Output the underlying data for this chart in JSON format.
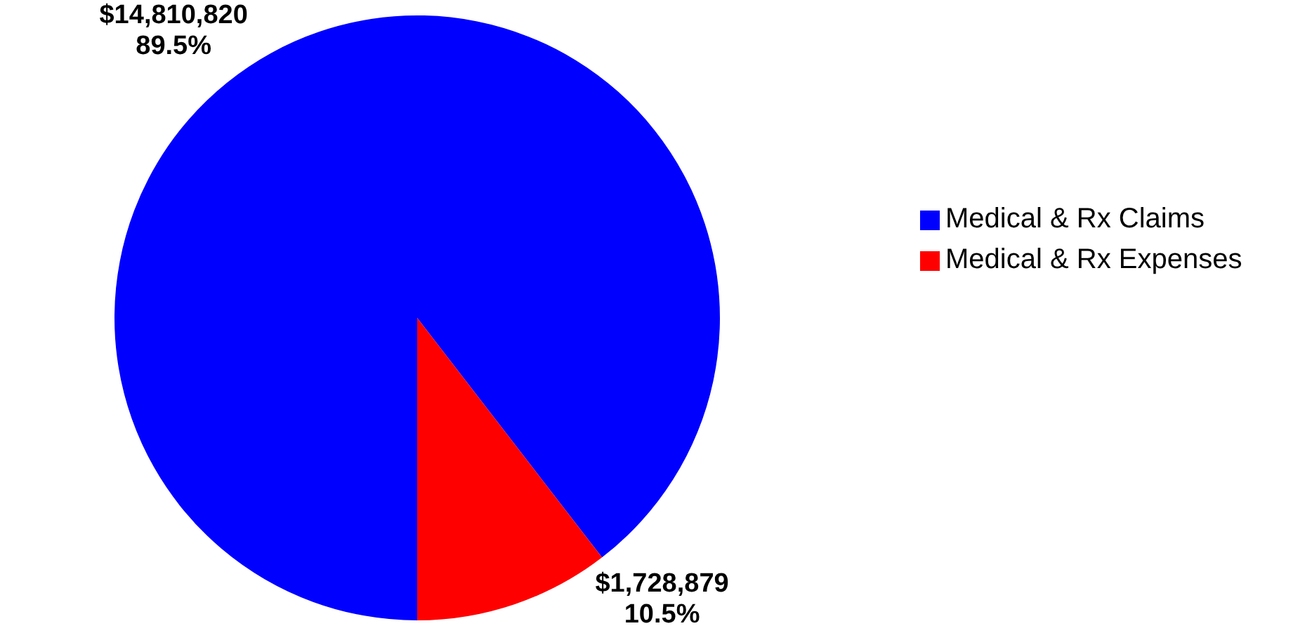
{
  "chart_data": {
    "type": "pie",
    "categories": [
      "Medical & Rx Claims",
      "Medical & Rx Expenses"
    ],
    "values": [
      14810820,
      1728879
    ],
    "colors": [
      "#0000ff",
      "#ff0000"
    ],
    "value_labels": [
      "$14,810,820\n89.5%",
      "$1,728,879\n10.5%"
    ],
    "legend": "right"
  }
}
